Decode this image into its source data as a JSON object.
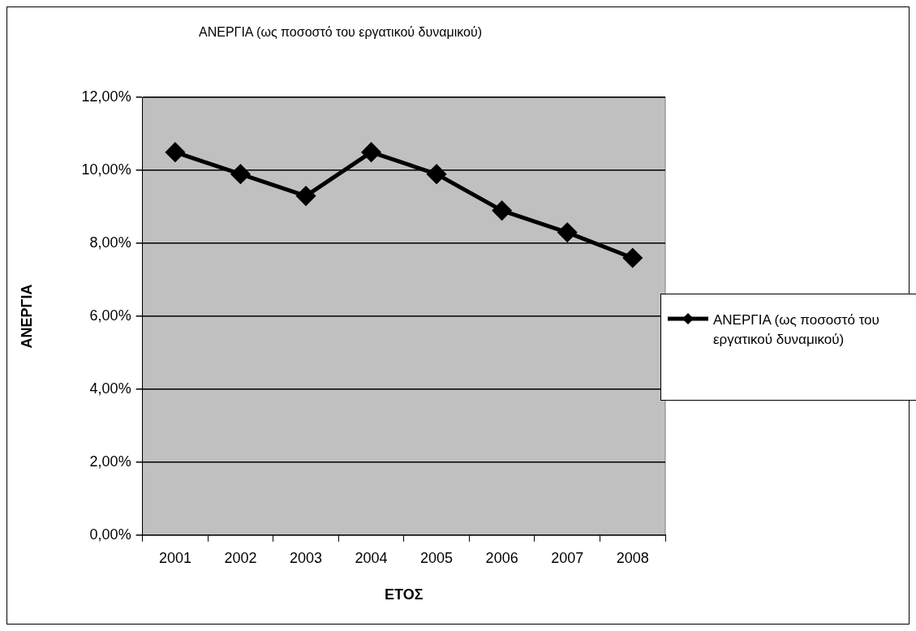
{
  "chart_data": {
    "type": "line",
    "title": "ΑΝΕΡΓΙΑ (ως ποσοστό του εργατικού δυναμικού)",
    "xlabel": "ΕΤΟΣ",
    "ylabel": "ΑΝΕΡΓΙΑ",
    "categories": [
      "2001",
      "2002",
      "2003",
      "2004",
      "2005",
      "2006",
      "2007",
      "2008"
    ],
    "series": [
      {
        "name": "ΑΝΕΡΓΙΑ (ως ποσοστό του εργατικού δυναμικού)",
        "color": "#000000",
        "values": [
          10.5,
          9.9,
          9.3,
          10.5,
          9.9,
          8.9,
          8.3,
          7.6
        ]
      }
    ],
    "ylim": [
      0,
      12
    ],
    "yticks": [
      {
        "value": 0,
        "label": "0,00%"
      },
      {
        "value": 2,
        "label": "2,00%"
      },
      {
        "value": 4,
        "label": "4,00%"
      },
      {
        "value": 6,
        "label": "6,00%"
      },
      {
        "value": 8,
        "label": "8,00%"
      },
      {
        "value": 10,
        "label": "10,00%"
      },
      {
        "value": 12,
        "label": "12,00%"
      }
    ],
    "grid": "y",
    "legend": "right",
    "marker": "diamond",
    "line_style": "solid"
  }
}
